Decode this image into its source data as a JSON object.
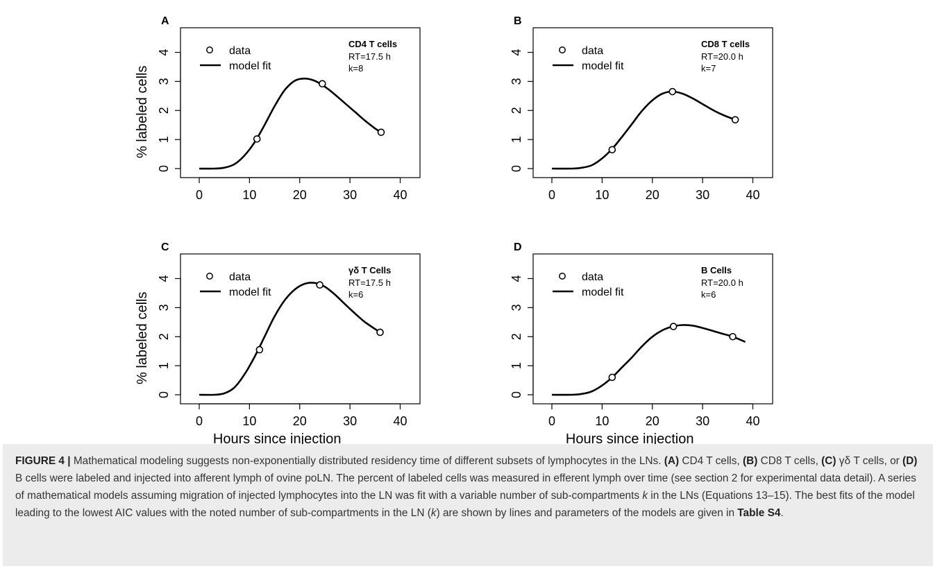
{
  "figure": {
    "panels": [
      {
        "letter": "A",
        "cell_type": "CD4 T cells",
        "rt": "RT=17.5 h",
        "k": "k=8"
      },
      {
        "letter": "B",
        "cell_type": "CD8 T cells",
        "rt": "RT=20.0 h",
        "k": "k=7"
      },
      {
        "letter": "C",
        "cell_type": "γδ T Cells",
        "rt": "RT=17.5 h",
        "k": "k=6"
      },
      {
        "letter": "D",
        "cell_type": "B Cells",
        "rt": "RT=20.0 h",
        "k": "k=6"
      }
    ],
    "legend": {
      "data_label": "data",
      "fit_label": "model fit"
    },
    "ylabel": "% labeled cells",
    "xlabel": "Hours since injection"
  },
  "chart_data": [
    {
      "type": "line",
      "panel": "A",
      "annotation": "CD4 T cells",
      "xlabel": "",
      "ylabel": "% labeled cells",
      "xlim": [
        0,
        40
      ],
      "ylim": [
        0,
        4
      ],
      "xticks": [
        0,
        10,
        20,
        30,
        40
      ],
      "yticks": [
        0,
        1,
        2,
        3,
        4
      ],
      "series": [
        {
          "name": "data",
          "kind": "points",
          "x": [
            11.5,
            24.5,
            36.2
          ],
          "y": [
            1.02,
            2.92,
            1.25
          ]
        },
        {
          "name": "model fit",
          "kind": "line",
          "x": [
            0,
            3,
            5,
            7,
            9,
            11,
            13,
            15,
            17,
            19,
            21,
            23,
            25,
            27,
            29,
            31,
            33,
            35,
            36.2
          ],
          "y": [
            0,
            0,
            0.03,
            0.15,
            0.45,
            0.9,
            1.5,
            2.15,
            2.7,
            3.02,
            3.1,
            3.02,
            2.82,
            2.55,
            2.25,
            1.95,
            1.65,
            1.38,
            1.25
          ]
        }
      ],
      "legend_position": "top-left",
      "grid": false
    },
    {
      "type": "line",
      "panel": "B",
      "annotation": "CD8 T cells",
      "xlabel": "",
      "ylabel": "",
      "xlim": [
        0,
        40
      ],
      "ylim": [
        0,
        4
      ],
      "xticks": [
        0,
        10,
        20,
        30,
        40
      ],
      "yticks": [
        0,
        1,
        2,
        3,
        4
      ],
      "series": [
        {
          "name": "data",
          "kind": "points",
          "x": [
            12,
            24,
            36.5
          ],
          "y": [
            0.65,
            2.65,
            1.68
          ]
        },
        {
          "name": "model fit",
          "kind": "line",
          "x": [
            0,
            4,
            6,
            8,
            10,
            12,
            14,
            16,
            18,
            20,
            22,
            24,
            26,
            28,
            30,
            32,
            34,
            36.5
          ],
          "y": [
            0,
            0,
            0.03,
            0.12,
            0.35,
            0.68,
            1.1,
            1.55,
            2.0,
            2.35,
            2.58,
            2.65,
            2.58,
            2.42,
            2.22,
            2.02,
            1.85,
            1.68
          ]
        }
      ],
      "legend_position": "top-left",
      "grid": false
    },
    {
      "type": "line",
      "panel": "C",
      "annotation": "γδ T Cells",
      "xlabel": "Hours since injection",
      "ylabel": "% labeled cells",
      "xlim": [
        0,
        40
      ],
      "ylim": [
        0,
        4
      ],
      "xticks": [
        0,
        10,
        20,
        30,
        40
      ],
      "yticks": [
        0,
        1,
        2,
        3,
        4
      ],
      "series": [
        {
          "name": "data",
          "kind": "points",
          "x": [
            12,
            24,
            36
          ],
          "y": [
            1.55,
            3.78,
            2.15
          ]
        },
        {
          "name": "model fit",
          "kind": "line",
          "x": [
            0,
            3,
            5,
            7,
            9,
            11,
            13,
            15,
            17,
            19,
            21,
            23,
            25,
            27,
            29,
            31,
            33,
            36
          ],
          "y": [
            0,
            0,
            0.05,
            0.25,
            0.7,
            1.3,
            2.0,
            2.7,
            3.25,
            3.62,
            3.82,
            3.85,
            3.72,
            3.45,
            3.12,
            2.8,
            2.5,
            2.15
          ]
        }
      ],
      "legend_position": "top-left",
      "grid": false
    },
    {
      "type": "line",
      "panel": "D",
      "annotation": "B Cells",
      "xlabel": "Hours since injection",
      "ylabel": "",
      "xlim": [
        0,
        40
      ],
      "ylim": [
        0,
        4
      ],
      "xticks": [
        0,
        10,
        20,
        30,
        40
      ],
      "yticks": [
        0,
        1,
        2,
        3,
        4
      ],
      "series": [
        {
          "name": "data",
          "kind": "points",
          "x": [
            12,
            24.2,
            36
          ],
          "y": [
            0.6,
            2.35,
            2.0
          ]
        },
        {
          "name": "model fit",
          "kind": "line",
          "x": [
            0,
            4,
            6,
            8,
            10,
            12,
            14,
            16,
            18,
            20,
            22,
            24,
            26,
            28,
            30,
            32,
            34,
            36,
            38.5
          ],
          "y": [
            0,
            0,
            0.03,
            0.12,
            0.32,
            0.6,
            0.95,
            1.3,
            1.68,
            2.0,
            2.22,
            2.35,
            2.4,
            2.38,
            2.3,
            2.2,
            2.1,
            2.0,
            1.82
          ]
        }
      ],
      "legend_position": "top-left",
      "grid": false
    }
  ],
  "caption": {
    "label": "FIGURE 4 |",
    "p1": " Mathematical modeling suggests non-exponentially distributed residency time of different subsets of lymphocytes in the LNs. ",
    "a": "(A)",
    "t_a": " CD4 T cells, ",
    "b": "(B)",
    "t_b": " CD8 T cells, ",
    "c": "(C)",
    "t_c": " γδ T cells, or ",
    "d": "(D)",
    "p2": " B cells were labeled and injected into afferent lymph of ovine poLN. The percent of labeled cells was measured in efferent lymph over time (see section 2 for experimental data detail). A series of mathematical models assuming migration of injected lymphocytes into the LN was fit with a variable number of sub-compartments ",
    "k1": "k",
    "p3": " in the LNs (Equations 13–15). The best fits of the model leading to the lowest AIC values with the noted number of sub-compartments in the LN (",
    "k2": "k",
    "p4": ") are shown by lines and parameters of the models are given in ",
    "table": "Table S4",
    "p5": "."
  }
}
